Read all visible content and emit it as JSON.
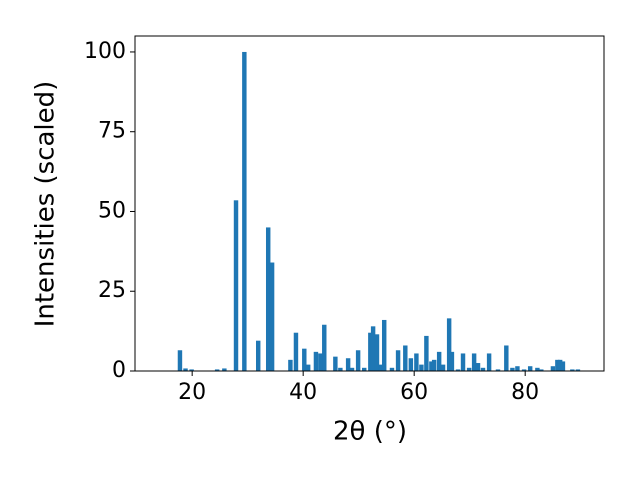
{
  "chart_data": {
    "type": "bar",
    "x_label": "2θ (°)",
    "y_label": "Intensities (scaled)",
    "color": "#1f77b4",
    "x": [
      17.8,
      18.8,
      19.9,
      24.5,
      25.8,
      27.9,
      29.4,
      31.9,
      33.7,
      34.4,
      37.7,
      38.7,
      40.2,
      40.9,
      42.3,
      43.1,
      43.8,
      45.8,
      46.7,
      48.1,
      48.8,
      49.9,
      51.0,
      52.1,
      52.6,
      53.3,
      53.9,
      54.6,
      56.0,
      57.1,
      58.4,
      59.4,
      60.4,
      61.3,
      62.2,
      63.1,
      63.6,
      64.5,
      65.2,
      66.3,
      66.8,
      67.9,
      68.8,
      69.9,
      70.8,
      71.5,
      72.4,
      73.5,
      75.1,
      76.6,
      77.7,
      78.6,
      79.8,
      80.9,
      82.2,
      82.9,
      85.0,
      85.8,
      86.3,
      86.8,
      88.5,
      89.5
    ],
    "values": [
      6.5,
      0.8,
      0.5,
      0.5,
      0.8,
      53.5,
      100,
      9.5,
      45,
      34,
      3.5,
      12,
      7,
      2,
      6,
      5.5,
      14.5,
      4.5,
      1,
      4,
      1,
      6.5,
      1,
      12,
      14,
      11.5,
      2,
      16,
      1,
      6.5,
      8,
      4,
      5.5,
      2,
      11,
      3,
      3.5,
      6,
      2,
      16.5,
      6,
      0.5,
      5.5,
      1,
      5.5,
      2.5,
      1,
      5.5,
      0.5,
      8,
      1,
      1.5,
      0.5,
      1.5,
      1,
      0.5,
      1.5,
      3.5,
      3.5,
      3,
      0.5,
      0.5
    ],
    "xlim": [
      9.7,
      94.2
    ],
    "ylim": [
      0,
      105
    ],
    "xticks": [
      20,
      40,
      60,
      80
    ],
    "yticks": [
      0,
      25,
      50,
      75,
      100
    ]
  }
}
